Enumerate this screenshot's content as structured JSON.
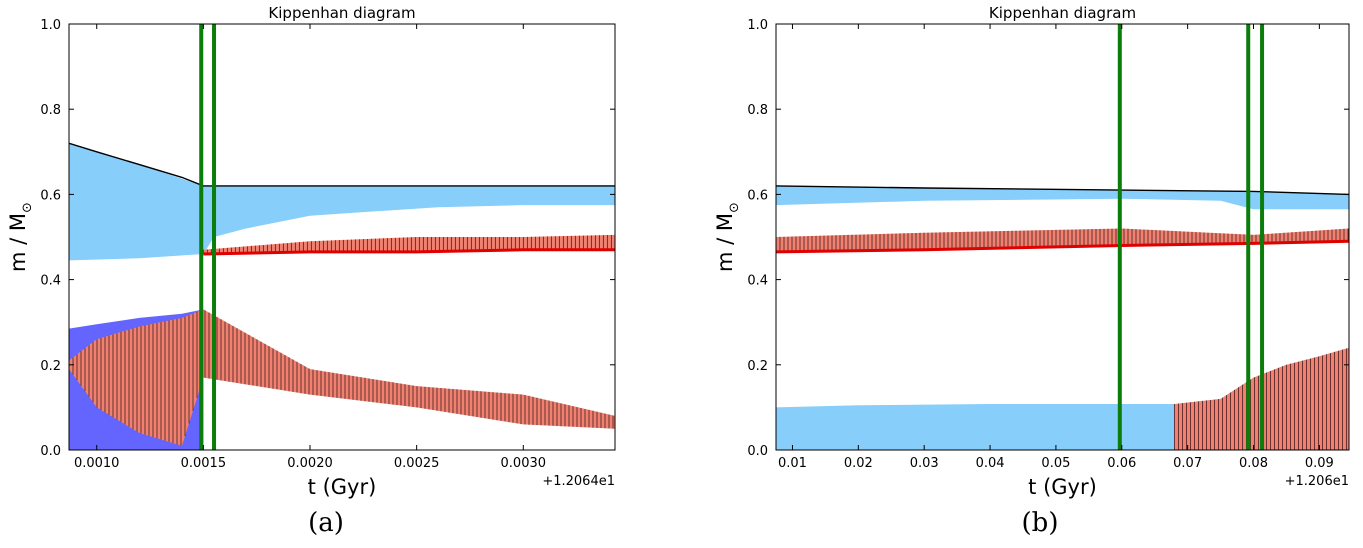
{
  "captions": [
    "(a)",
    "(b)"
  ],
  "colors": {
    "convective_blue": "#87cefa",
    "core_convective": "#6464ff",
    "burning_salmon": "#f08070",
    "burning_red": "#e00000",
    "marker_green": "#0a7d0a",
    "surface_line": "#000000"
  },
  "chart_data": [
    {
      "type": "area",
      "title": "Kippenhan diagram",
      "xlabel": "t (Gyr)",
      "ylabel": "m / M",
      "ylabel_subscript": "⊙",
      "offset_label": "+1.2064e1",
      "xlim": [
        0.00087,
        0.00343
      ],
      "ylim": [
        0.0,
        1.0
      ],
      "xticks": [
        0.001,
        0.0015,
        0.002,
        0.0025,
        0.003
      ],
      "xtick_labels": [
        "0.0010",
        "0.0015",
        "0.0020",
        "0.0025",
        "0.0030"
      ],
      "yticks": [
        0.0,
        0.2,
        0.4,
        0.6,
        0.8,
        1.0
      ],
      "ytick_labels": [
        "0.0",
        "0.2",
        "0.4",
        "0.6",
        "0.8",
        "1.0"
      ],
      "vertical_markers": [
        0.00149,
        0.00155
      ],
      "surface": {
        "x": [
          0.00087,
          0.001,
          0.0012,
          0.0014,
          0.0015,
          0.00343
        ],
        "y": [
          0.72,
          0.7,
          0.67,
          0.64,
          0.62,
          0.62
        ]
      },
      "envelope_convection": {
        "x": [
          0.00087,
          0.0012,
          0.0015,
          0.00155,
          0.0017,
          0.002,
          0.0023,
          0.0026,
          0.003,
          0.00343
        ],
        "bottom": [
          0.445,
          0.45,
          0.46,
          0.5,
          0.52,
          0.55,
          0.56,
          0.57,
          0.575,
          0.575
        ]
      },
      "shell_burning": {
        "x": [
          0.0015,
          0.002,
          0.0025,
          0.003,
          0.00343
        ],
        "bottom": [
          0.46,
          0.465,
          0.465,
          0.47,
          0.47
        ],
        "top": [
          0.47,
          0.49,
          0.5,
          0.5,
          0.505
        ]
      },
      "core_burning": {
        "x": [
          0.00087,
          0.001,
          0.0012,
          0.0014,
          0.0015,
          0.002,
          0.0025,
          0.003,
          0.00343
        ],
        "bottom": [
          0.19,
          0.1,
          0.04,
          0.01,
          0.17,
          0.13,
          0.1,
          0.06,
          0.05
        ],
        "top": [
          0.21,
          0.26,
          0.29,
          0.31,
          0.33,
          0.19,
          0.15,
          0.13,
          0.08
        ]
      },
      "core_convection": {
        "x": [
          0.00087,
          0.001,
          0.0012,
          0.0014,
          0.0015
        ],
        "top": [
          0.285,
          0.295,
          0.31,
          0.32,
          0.33
        ]
      }
    },
    {
      "type": "area",
      "title": "Kippenhan diagram",
      "xlabel": "t (Gyr)",
      "ylabel": "m / M",
      "ylabel_subscript": "⊙",
      "offset_label": "+1.206e1",
      "xlim": [
        0.0075,
        0.0945
      ],
      "ylim": [
        0.0,
        1.0
      ],
      "xticks": [
        0.01,
        0.02,
        0.03,
        0.04,
        0.05,
        0.06,
        0.07,
        0.08,
        0.09
      ],
      "xtick_labels": [
        "0.01",
        "0.02",
        "0.03",
        "0.04",
        "0.05",
        "0.06",
        "0.07",
        "0.08",
        "0.09"
      ],
      "yticks": [
        0.0,
        0.2,
        0.4,
        0.6,
        0.8,
        1.0
      ],
      "ytick_labels": [
        "0.0",
        "0.2",
        "0.4",
        "0.6",
        "0.8",
        "1.0"
      ],
      "vertical_markers": [
        0.0597,
        0.0792,
        0.0813
      ],
      "surface": {
        "x": [
          0.0075,
          0.03,
          0.06,
          0.08,
          0.0945
        ],
        "y": [
          0.62,
          0.615,
          0.61,
          0.607,
          0.6
        ]
      },
      "envelope_convection": {
        "x": [
          0.0075,
          0.03,
          0.06,
          0.075,
          0.08,
          0.0945
        ],
        "bottom": [
          0.575,
          0.585,
          0.59,
          0.585,
          0.565,
          0.565
        ]
      },
      "shell_burning": {
        "x": [
          0.0075,
          0.03,
          0.06,
          0.08,
          0.0945
        ],
        "bottom": [
          0.465,
          0.47,
          0.48,
          0.485,
          0.49
        ],
        "top": [
          0.5,
          0.51,
          0.52,
          0.505,
          0.52
        ]
      },
      "core_convection": {
        "x": [
          0.0075,
          0.02,
          0.04,
          0.06,
          0.08,
          0.0945
        ],
        "top": [
          0.1,
          0.105,
          0.108,
          0.108,
          0.108,
          0.108
        ]
      },
      "core_burning": {
        "x": [
          0.068,
          0.075,
          0.08,
          0.085,
          0.09,
          0.0945
        ],
        "bottom": [
          0.0,
          0.0,
          0.0,
          0.0,
          0.0,
          0.0
        ],
        "top": [
          0.108,
          0.12,
          0.17,
          0.2,
          0.22,
          0.24
        ]
      }
    }
  ]
}
